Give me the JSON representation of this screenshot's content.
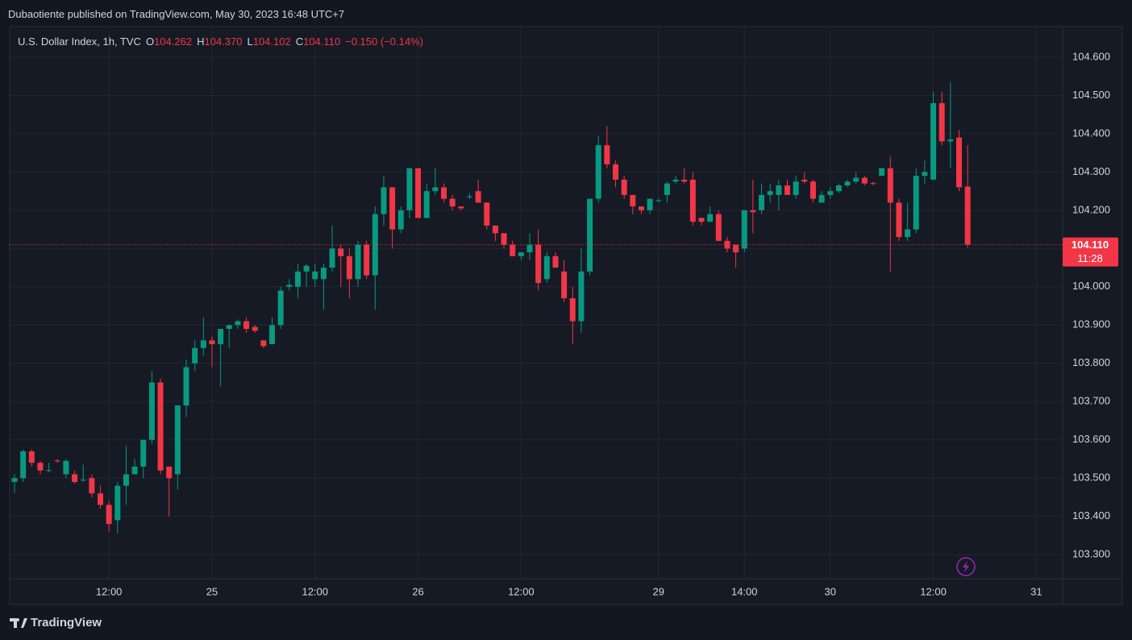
{
  "published": "Dubaotiente published on TradingView.com, May 30, 2023 16:48 UTC+7",
  "legend": {
    "symbol": "U.S. Dollar Index, 1h, TVC",
    "ohlc": [
      {
        "key": "O",
        "value": "104.262"
      },
      {
        "key": "H",
        "value": "104.370"
      },
      {
        "key": "L",
        "value": "104.102"
      },
      {
        "key": "C",
        "value": "104.110"
      }
    ],
    "change": "−0.150 (−0.14%)"
  },
  "footer": {
    "brand": "TradingView"
  },
  "chart_data": {
    "type": "candlestick",
    "categories": [
      null,
      null,
      null,
      null,
      null,
      null,
      null,
      null,
      null,
      null,
      null,
      "12:00",
      null,
      null,
      null,
      null,
      null,
      null,
      null,
      null,
      null,
      null,
      null,
      "25",
      null,
      null,
      null,
      null,
      null,
      null,
      null,
      null,
      null,
      null,
      null,
      "12:00",
      null,
      null,
      null,
      null,
      null,
      null,
      null,
      null,
      null,
      null,
      null,
      "26",
      null,
      null,
      null,
      null,
      null,
      null,
      null,
      null,
      null,
      null,
      null,
      "12:00",
      null,
      null,
      null,
      null,
      null,
      null,
      null,
      null,
      null,
      null,
      null,
      null,
      null,
      null,
      null,
      "29",
      null,
      null,
      null,
      null,
      null,
      null,
      null,
      null,
      null,
      "14:00",
      null,
      null,
      null,
      null,
      null,
      null,
      null,
      null,
      null,
      "30",
      null,
      null,
      null,
      null,
      null,
      null,
      null,
      null,
      null,
      null,
      null,
      "12:00",
      null,
      null,
      null,
      null,
      null,
      null,
      null,
      null,
      null,
      null,
      null,
      "31",
      null,
      null
    ],
    "open": [
      103.49,
      103.5,
      103.57,
      103.54,
      103.52,
      103.546,
      103.51,
      103.51,
      103.495,
      103.5,
      103.46,
      103.43,
      103.39,
      103.48,
      103.51,
      103.53,
      103.6,
      103.75,
      103.53,
      103.51,
      103.69,
      103.8,
      103.84,
      103.86,
      103.85,
      103.89,
      103.9,
      103.91,
      103.895,
      103.86,
      103.85,
      103.9,
      104.0,
      104.0,
      104.04,
      104.02,
      104.02,
      104.05,
      104.1,
      104.08,
      104.02,
      104.11,
      104.03,
      104.19,
      104.26,
      104.15,
      104.2,
      104.31,
      104.18,
      104.25,
      104.26,
      104.23,
      104.21,
      104.234,
      104.25,
      104.22,
      104.16,
      104.14,
      104.11,
      104.08,
      104.09,
      104.11,
      104.02,
      104.08,
      104.04,
      103.97,
      103.91,
      104.04,
      104.23,
      104.37,
      104.32,
      104.28,
      104.24,
      104.21,
      104.2,
      104.225,
      104.24,
      104.275,
      104.28,
      104.28,
      104.18,
      104.17,
      104.19,
      104.12,
      104.11,
      104.1,
      104.2,
      104.2,
      104.24,
      104.24,
      104.265,
      104.24,
      104.28,
      104.275,
      104.22,
      104.24,
      104.25,
      104.265,
      104.275,
      104.285,
      104.271,
      104.29,
      104.31,
      104.22,
      104.13,
      104.15,
      104.29,
      104.28,
      104.48,
      104.38,
      104.39,
      104.262,
      null,
      null,
      null,
      null,
      null,
      null,
      null,
      null,
      null,
      null
    ],
    "high": [
      103.51,
      103.575,
      103.575,
      103.545,
      103.54,
      103.55,
      103.55,
      103.52,
      103.535,
      103.51,
      103.48,
      103.44,
      103.49,
      103.585,
      103.55,
      103.6,
      103.78,
      103.76,
      103.53,
      103.69,
      103.81,
      103.86,
      103.92,
      103.87,
      103.89,
      103.9,
      103.915,
      103.92,
      103.9,
      103.86,
      103.92,
      104.0,
      104.02,
      104.06,
      104.06,
      104.06,
      104.06,
      104.16,
      104.11,
      104.1,
      104.12,
      104.12,
      104.21,
      104.29,
      104.26,
      104.21,
      104.31,
      104.31,
      104.27,
      104.31,
      104.27,
      104.24,
      104.21,
      104.245,
      104.28,
      104.22,
      104.16,
      104.14,
      104.12,
      104.09,
      104.14,
      104.15,
      104.09,
      104.09,
      104.07,
      104.0,
      104.1,
      104.23,
      104.395,
      104.42,
      104.33,
      104.29,
      104.24,
      104.21,
      104.23,
      104.23,
      104.275,
      104.29,
      104.31,
      104.3,
      104.18,
      104.21,
      104.2,
      104.13,
      104.11,
      104.2,
      104.28,
      104.27,
      104.27,
      104.28,
      104.28,
      104.29,
      104.3,
      104.28,
      104.25,
      104.26,
      104.27,
      104.28,
      104.3,
      104.29,
      104.275,
      104.31,
      104.34,
      104.23,
      104.22,
      104.31,
      104.33,
      104.51,
      104.51,
      104.535,
      104.41,
      104.37,
      null,
      null,
      null,
      null,
      null,
      null,
      null,
      null,
      null,
      null
    ],
    "low": [
      103.46,
      103.49,
      103.53,
      103.51,
      103.515,
      103.54,
      103.5,
      103.485,
      103.49,
      103.45,
      103.42,
      103.36,
      103.355,
      103.43,
      103.51,
      103.5,
      103.59,
      103.51,
      103.4,
      103.47,
      103.66,
      103.78,
      103.82,
      103.79,
      103.74,
      103.84,
      103.89,
      103.88,
      103.88,
      103.84,
      103.85,
      103.89,
      103.99,
      103.97,
      104.0,
      104.0,
      103.94,
      104.04,
      104.0,
      103.97,
      104.0,
      104.02,
      103.94,
      104.16,
      104.1,
      104.14,
      104.18,
      104.18,
      104.18,
      104.24,
      104.22,
      104.2,
      104.2,
      104.23,
      104.22,
      104.15,
      104.12,
      104.1,
      104.08,
      104.07,
      104.07,
      103.99,
      104.01,
      104.05,
      103.96,
      103.85,
      103.88,
      104.03,
      104.22,
      104.31,
      104.26,
      104.23,
      104.19,
      104.19,
      104.19,
      104.22,
      104.22,
      104.27,
      104.27,
      104.16,
      104.16,
      104.17,
      104.12,
      104.09,
      104.05,
      104.09,
      104.14,
      104.19,
      104.22,
      104.2,
      104.24,
      104.23,
      104.27,
      104.22,
      104.22,
      104.23,
      104.245,
      104.26,
      104.27,
      104.265,
      104.265,
      104.29,
      104.04,
      104.12,
      104.12,
      104.14,
      104.27,
      104.28,
      104.37,
      104.31,
      104.25,
      104.102,
      null,
      null,
      null,
      null,
      null,
      null,
      null,
      null,
      null,
      null
    ],
    "close": [
      103.5,
      103.57,
      103.54,
      103.52,
      103.521,
      103.544,
      103.545,
      103.49,
      103.496,
      103.46,
      103.43,
      103.38,
      103.48,
      103.51,
      103.53,
      103.6,
      103.75,
      103.52,
      103.5,
      103.69,
      103.79,
      103.84,
      103.86,
      103.85,
      103.89,
      103.9,
      103.91,
      103.89,
      103.885,
      103.845,
      103.9,
      103.99,
      104.005,
      104.04,
      104.055,
      104.04,
      104.05,
      104.1,
      104.08,
      104.02,
      104.11,
      104.03,
      104.19,
      104.26,
      104.15,
      104.2,
      104.31,
      104.18,
      104.25,
      104.26,
      104.23,
      104.21,
      104.205,
      104.236,
      104.22,
      104.16,
      104.14,
      104.11,
      104.08,
      104.09,
      104.11,
      104.01,
      104.08,
      104.05,
      103.97,
      103.91,
      104.04,
      104.23,
      104.37,
      104.32,
      104.28,
      104.24,
      104.21,
      104.2,
      104.23,
      104.226,
      104.27,
      104.28,
      104.275,
      104.17,
      104.17,
      104.19,
      104.12,
      104.1,
      104.09,
      104.2,
      104.195,
      104.24,
      104.25,
      104.265,
      104.24,
      104.275,
      104.275,
      104.23,
      104.24,
      104.25,
      104.265,
      104.275,
      104.285,
      104.27,
      104.269,
      104.31,
      104.22,
      104.13,
      104.15,
      104.29,
      104.3,
      104.48,
      104.38,
      104.385,
      104.26,
      104.11,
      null,
      null,
      null,
      null,
      null,
      null,
      null,
      null,
      null,
      null
    ],
    "up_color": "#089981",
    "down_color": "#f23645",
    "ylim": [
      103.237,
      104.68
    ],
    "yticks": [
      {
        "value": 103.3,
        "label": "103.300"
      },
      {
        "value": 103.4,
        "label": "103.400"
      },
      {
        "value": 103.5,
        "label": "103.500"
      },
      {
        "value": 103.6,
        "label": "103.600"
      },
      {
        "value": 103.7,
        "label": "103.700"
      },
      {
        "value": 103.8,
        "label": "103.800"
      },
      {
        "value": 103.9,
        "label": "103.900"
      },
      {
        "value": 104.0,
        "label": "104.000"
      },
      {
        "value": 104.1,
        "label": "104.100"
      },
      {
        "value": 104.2,
        "label": "104.200"
      },
      {
        "value": 104.3,
        "label": "104.300"
      },
      {
        "value": 104.4,
        "label": "104.400"
      },
      {
        "value": 104.5,
        "label": "104.500"
      },
      {
        "value": 104.6,
        "label": "104.600"
      }
    ],
    "grid": true,
    "last_price": {
      "value": 104.11,
      "label": "104.110",
      "countdown": "11:28"
    }
  }
}
